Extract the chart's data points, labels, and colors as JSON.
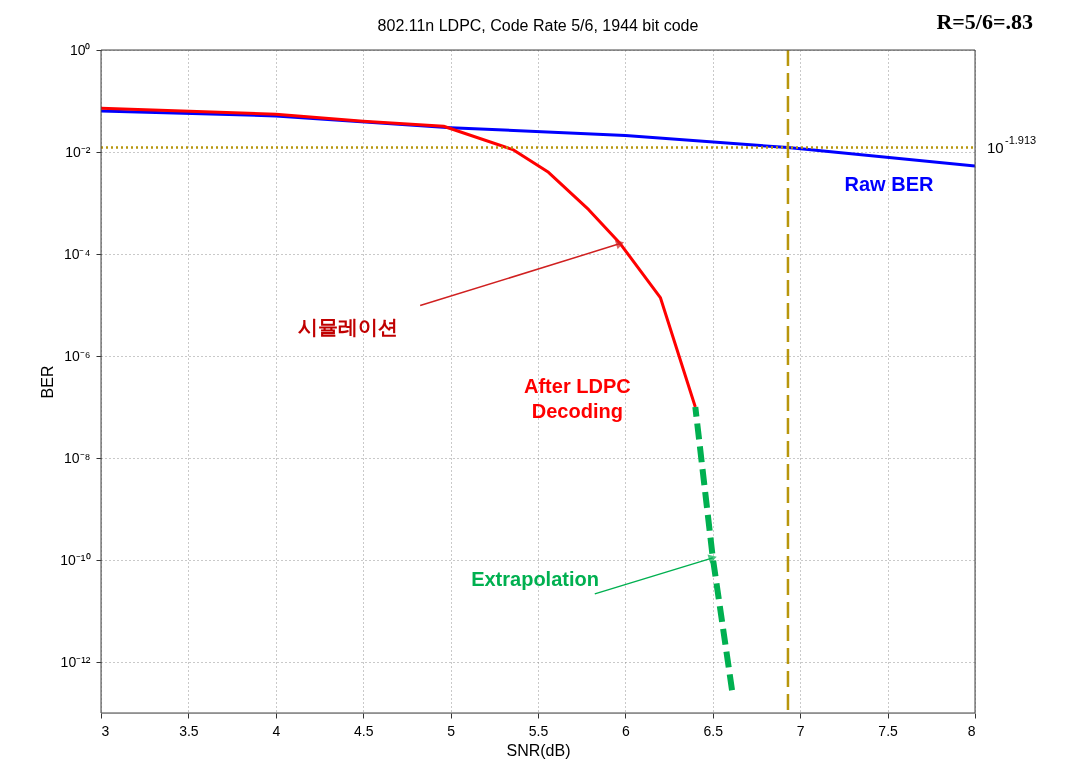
{
  "chart_data": {
    "type": "line",
    "title": "802.11n LDPC, Code Rate 5/6, 1944 bit code",
    "xlabel": "SNR(dB)",
    "ylabel": "BER",
    "log": "y",
    "grid": true,
    "xlim": [
      3,
      8
    ],
    "xticks": [
      3,
      3.5,
      4,
      4.5,
      5,
      5.5,
      6,
      6.5,
      7,
      7.5,
      8
    ],
    "ylim": [
      1e-13,
      1
    ],
    "yticks": [
      {
        "value": 1,
        "label": "10⁰"
      },
      {
        "value": 0.01,
        "label": "10⁻²"
      },
      {
        "value": 0.0001,
        "label": "10⁻⁴"
      },
      {
        "value": 1e-06,
        "label": "10⁻⁶"
      },
      {
        "value": 1e-08,
        "label": "10⁻⁸"
      },
      {
        "value": 1e-10,
        "label": "10⁻¹⁰"
      },
      {
        "value": 1e-12,
        "label": "10⁻¹²"
      }
    ],
    "series": [
      {
        "name": "Raw BER",
        "color": "#0000ff",
        "x": [
          3,
          4,
          5,
          6,
          6.93,
          8
        ],
        "values": [
          0.064,
          0.051,
          0.03,
          0.021,
          0.0122,
          0.0053
        ]
      },
      {
        "name": "After LDPC Decoding",
        "color": "#ff0000",
        "x": [
          3,
          4,
          4.5,
          4.96,
          5.36,
          5.56,
          5.79,
          5.97,
          6.2,
          6.4
        ],
        "values": [
          0.072,
          0.055,
          0.04,
          0.032,
          0.011,
          0.004,
          0.00074,
          0.00016,
          1.4e-05,
          1e-07
        ]
      },
      {
        "name": "Extrapolation",
        "color": "#00b050",
        "line_style": "dashed",
        "x": [
          6.4,
          6.5,
          6.61
        ],
        "values": [
          1e-07,
          1.1e-10,
          2.8e-13
        ]
      }
    ],
    "ref_lines": [
      {
        "axis": "y",
        "value": 0.012218,
        "color": "#b8960c",
        "line_style": "dotted"
      },
      {
        "axis": "x",
        "value": 6.93,
        "color": "#b8960c",
        "line_style": "dashed"
      }
    ],
    "annotations": [
      "R=5/6=.83",
      "10$^{-1.913}$",
      {
        "text": "시뮬레이션",
        "x": 5.97,
        "y": 0.00016
      }
    ]
  }
}
